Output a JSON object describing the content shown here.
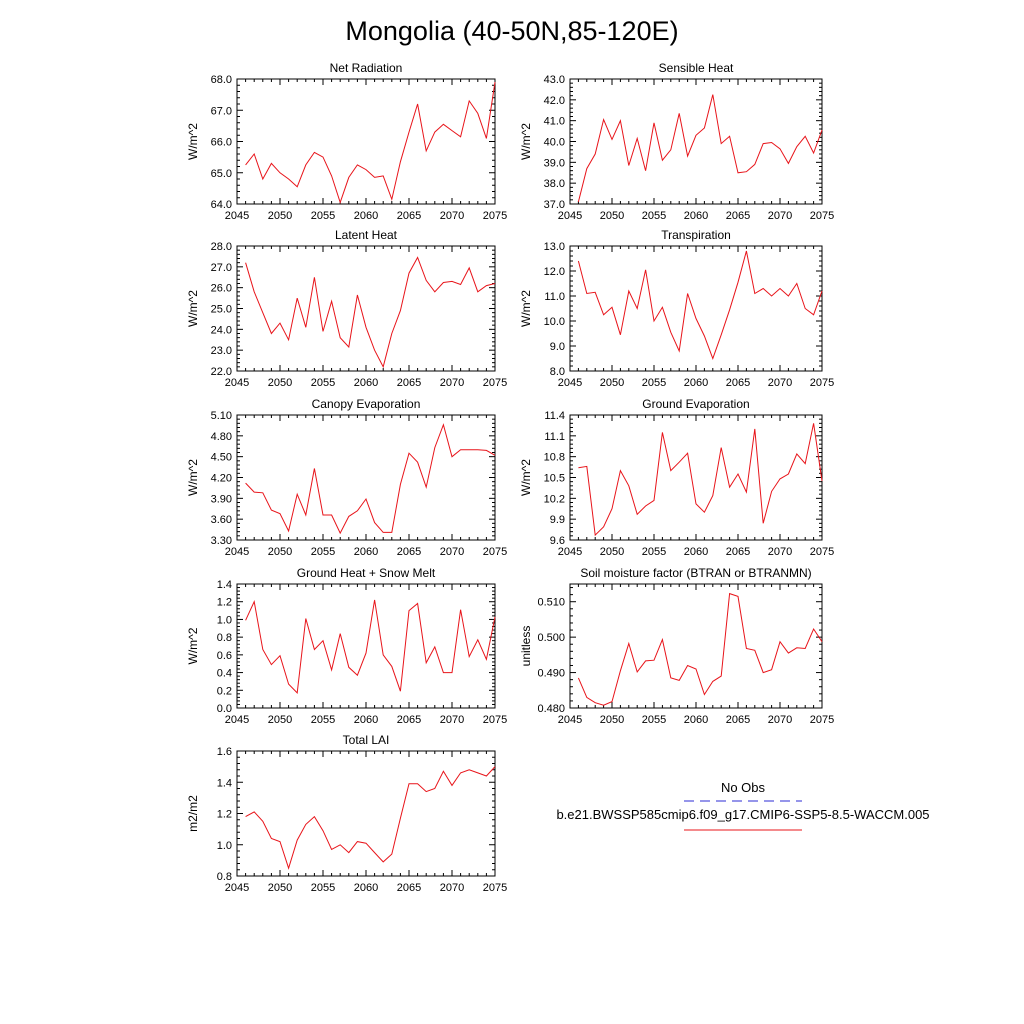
{
  "title": "Mongolia (40-50N,85-120E)",
  "legend": {
    "obs_label": "No Obs",
    "obs_color": "#2b2bd6",
    "model_label": "b.e21.BWSSP585cmip6.f09_g17.CMIP6-SSP5-8.5-WACCM.005",
    "model_color": "#e8141a"
  },
  "line_color": "#e8141a",
  "chart_data": [
    {
      "id": "net-radiation",
      "type": "line",
      "title": "Net Radiation",
      "ylabel": "W/m^2",
      "xlabel": "",
      "xlim": [
        2045,
        2075
      ],
      "ylim": [
        64.0,
        68.0
      ],
      "xticks": [
        "2045",
        "2050",
        "2055",
        "2060",
        "2065",
        "2070",
        "2075"
      ],
      "yticks": [
        "64.0",
        "65.0",
        "66.0",
        "67.0",
        "68.0"
      ],
      "x": [
        2046,
        2047,
        2048,
        2049,
        2050,
        2051,
        2052,
        2053,
        2054,
        2055,
        2056,
        2057,
        2058,
        2059,
        2060,
        2061,
        2062,
        2063,
        2064,
        2065,
        2066,
        2067,
        2068,
        2069,
        2070,
        2071,
        2072,
        2073,
        2074,
        2075
      ],
      "values": [
        65.25,
        65.6,
        64.8,
        65.3,
        65.0,
        64.8,
        64.55,
        65.25,
        65.65,
        65.5,
        64.9,
        64.05,
        64.85,
        65.25,
        65.1,
        64.85,
        64.9,
        64.15,
        65.35,
        66.3,
        67.2,
        65.7,
        66.3,
        66.55,
        66.35,
        66.15,
        67.3,
        66.9,
        66.1,
        67.9
      ]
    },
    {
      "id": "sensible-heat",
      "type": "line",
      "title": "Sensible Heat",
      "ylabel": "W/m^2",
      "xlabel": "",
      "xlim": [
        2045,
        2075
      ],
      "ylim": [
        37.0,
        43.0
      ],
      "xticks": [
        "2045",
        "2050",
        "2055",
        "2060",
        "2065",
        "2070",
        "2075"
      ],
      "yticks": [
        "37.0",
        "38.0",
        "39.0",
        "40.0",
        "41.0",
        "42.0",
        "43.0"
      ],
      "x": [
        2046,
        2047,
        2048,
        2049,
        2050,
        2051,
        2052,
        2053,
        2054,
        2055,
        2056,
        2057,
        2058,
        2059,
        2060,
        2061,
        2062,
        2063,
        2064,
        2065,
        2066,
        2067,
        2068,
        2069,
        2070,
        2071,
        2072,
        2073,
        2074,
        2075
      ],
      "values": [
        37.1,
        38.7,
        39.4,
        41.05,
        40.1,
        41.0,
        38.85,
        40.15,
        38.6,
        40.9,
        39.1,
        39.6,
        41.35,
        39.3,
        40.3,
        40.65,
        42.25,
        39.9,
        40.25,
        38.5,
        38.55,
        38.9,
        39.9,
        39.95,
        39.65,
        38.95,
        39.75,
        40.25,
        39.45,
        40.55
      ]
    },
    {
      "id": "latent-heat",
      "type": "line",
      "title": "Latent Heat",
      "ylabel": "W/m^2",
      "xlabel": "",
      "xlim": [
        2045,
        2075
      ],
      "ylim": [
        22.0,
        28.0
      ],
      "xticks": [
        "2045",
        "2050",
        "2055",
        "2060",
        "2065",
        "2070",
        "2075"
      ],
      "yticks": [
        "22.0",
        "23.0",
        "24.0",
        "25.0",
        "26.0",
        "27.0",
        "28.0"
      ],
      "x": [
        2046,
        2047,
        2048,
        2049,
        2050,
        2051,
        2052,
        2053,
        2054,
        2055,
        2056,
        2057,
        2058,
        2059,
        2060,
        2061,
        2062,
        2063,
        2064,
        2065,
        2066,
        2067,
        2068,
        2069,
        2070,
        2071,
        2072,
        2073,
        2074,
        2075
      ],
      "values": [
        27.2,
        25.8,
        24.8,
        23.8,
        24.3,
        23.5,
        25.5,
        24.1,
        26.5,
        23.9,
        25.35,
        23.6,
        23.15,
        25.65,
        24.1,
        23.0,
        22.2,
        23.8,
        24.9,
        26.7,
        27.45,
        26.35,
        25.8,
        26.25,
        26.3,
        26.15,
        26.95,
        25.8,
        26.1,
        26.2
      ]
    },
    {
      "id": "transpiration",
      "type": "line",
      "title": "Transpiration",
      "ylabel": "W/m^2",
      "xlabel": "",
      "xlim": [
        2045,
        2075
      ],
      "ylim": [
        8.0,
        13.0
      ],
      "xticks": [
        "2045",
        "2050",
        "2055",
        "2060",
        "2065",
        "2070",
        "2075"
      ],
      "yticks": [
        "8.0",
        "9.0",
        "10.0",
        "11.0",
        "12.0",
        "13.0"
      ],
      "x": [
        2046,
        2047,
        2048,
        2049,
        2050,
        2051,
        2052,
        2053,
        2054,
        2055,
        2056,
        2057,
        2058,
        2059,
        2060,
        2061,
        2062,
        2063,
        2064,
        2065,
        2066,
        2067,
        2068,
        2069,
        2070,
        2071,
        2072,
        2073,
        2074,
        2075
      ],
      "values": [
        12.4,
        11.1,
        11.15,
        10.25,
        10.55,
        9.45,
        11.2,
        10.5,
        12.05,
        10.0,
        10.55,
        9.55,
        8.8,
        11.1,
        10.1,
        9.4,
        8.5,
        9.45,
        10.45,
        11.55,
        12.8,
        11.1,
        11.3,
        11.0,
        11.3,
        11.0,
        11.5,
        10.5,
        10.25,
        11.2
      ]
    },
    {
      "id": "canopy-evaporation",
      "type": "line",
      "title": "Canopy Evaporation",
      "ylabel": "W/m^2",
      "xlabel": "",
      "xlim": [
        2045,
        2075
      ],
      "ylim": [
        3.3,
        5.1
      ],
      "xticks": [
        "2045",
        "2050",
        "2055",
        "2060",
        "2065",
        "2070",
        "2075"
      ],
      "yticks": [
        "3.30",
        "3.60",
        "3.90",
        "4.20",
        "4.50",
        "4.80",
        "5.10"
      ],
      "x": [
        2046,
        2047,
        2048,
        2049,
        2050,
        2051,
        2052,
        2053,
        2054,
        2055,
        2056,
        2057,
        2058,
        2059,
        2060,
        2061,
        2062,
        2063,
        2064,
        2065,
        2066,
        2067,
        2068,
        2069,
        2070,
        2071,
        2072,
        2073,
        2074,
        2075
      ],
      "values": [
        4.12,
        3.99,
        3.98,
        3.73,
        3.68,
        3.43,
        3.96,
        3.66,
        4.33,
        3.66,
        3.66,
        3.4,
        3.64,
        3.72,
        3.89,
        3.55,
        3.41,
        3.41,
        4.1,
        4.55,
        4.42,
        4.06,
        4.63,
        4.96,
        4.5,
        4.6,
        4.6,
        4.6,
        4.59,
        4.52
      ]
    },
    {
      "id": "ground-evaporation",
      "type": "line",
      "title": "Ground Evaporation",
      "ylabel": "W/m^2",
      "xlabel": "",
      "xlim": [
        2045,
        2075
      ],
      "ylim": [
        9.6,
        11.4
      ],
      "xticks": [
        "2045",
        "2050",
        "2055",
        "2060",
        "2065",
        "2070",
        "2075"
      ],
      "yticks": [
        "9.6",
        "9.9",
        "10.2",
        "10.5",
        "10.8",
        "11.1",
        "11.4"
      ],
      "x": [
        2046,
        2047,
        2048,
        2049,
        2050,
        2051,
        2052,
        2053,
        2054,
        2055,
        2056,
        2057,
        2058,
        2059,
        2060,
        2061,
        2062,
        2063,
        2064,
        2065,
        2066,
        2067,
        2068,
        2069,
        2070,
        2071,
        2072,
        2073,
        2074,
        2075
      ],
      "values": [
        10.64,
        10.66,
        9.67,
        9.79,
        10.05,
        10.6,
        10.38,
        9.97,
        10.09,
        10.17,
        11.15,
        10.6,
        10.72,
        10.85,
        10.12,
        10.0,
        10.24,
        10.93,
        10.36,
        10.55,
        10.29,
        11.2,
        9.84,
        10.3,
        10.48,
        10.55,
        10.84,
        10.7,
        11.28,
        10.45
      ]
    },
    {
      "id": "ground-heat-snow-melt",
      "type": "line",
      "title": "Ground Heat + Snow Melt",
      "ylabel": "W/m^2",
      "xlabel": "",
      "xlim": [
        2045,
        2075
      ],
      "ylim": [
        0.0,
        1.4
      ],
      "xticks": [
        "2045",
        "2050",
        "2055",
        "2060",
        "2065",
        "2070",
        "2075"
      ],
      "yticks": [
        "0.0",
        "0.2",
        "0.4",
        "0.6",
        "0.8",
        "1.0",
        "1.2",
        "1.4"
      ],
      "x": [
        2046,
        2047,
        2048,
        2049,
        2050,
        2051,
        2052,
        2053,
        2054,
        2055,
        2056,
        2057,
        2058,
        2059,
        2060,
        2061,
        2062,
        2063,
        2064,
        2065,
        2066,
        2067,
        2068,
        2069,
        2070,
        2071,
        2072,
        2073,
        2074,
        2075
      ],
      "values": [
        0.99,
        1.2,
        0.66,
        0.49,
        0.59,
        0.27,
        0.17,
        1.01,
        0.66,
        0.76,
        0.43,
        0.84,
        0.46,
        0.37,
        0.62,
        1.22,
        0.6,
        0.47,
        0.19,
        1.1,
        1.18,
        0.51,
        0.69,
        0.4,
        0.4,
        1.11,
        0.58,
        0.77,
        0.55,
        1.03
      ]
    },
    {
      "id": "soil-moisture-factor",
      "type": "line",
      "title": "Soil moisture factor (BTRAN or BTRANMN)",
      "ylabel": "unitless",
      "xlabel": "",
      "xlim": [
        2045,
        2075
      ],
      "ylim": [
        0.48,
        0.515
      ],
      "xticks": [
        "2045",
        "2050",
        "2055",
        "2060",
        "2065",
        "2070",
        "2075"
      ],
      "yticks": [
        "0.480",
        "0.490",
        "0.500",
        "0.510"
      ],
      "x": [
        2046,
        2047,
        2048,
        2049,
        2050,
        2051,
        2052,
        2053,
        2054,
        2055,
        2056,
        2057,
        2058,
        2059,
        2060,
        2061,
        2062,
        2063,
        2064,
        2065,
        2066,
        2067,
        2068,
        2069,
        2070,
        2071,
        2072,
        2073,
        2074,
        2075
      ],
      "values": [
        0.4885,
        0.483,
        0.4815,
        0.4808,
        0.4818,
        0.4905,
        0.4982,
        0.4902,
        0.4933,
        0.4935,
        0.4993,
        0.4885,
        0.4878,
        0.492,
        0.491,
        0.4838,
        0.4875,
        0.489,
        0.5123,
        0.5115,
        0.4968,
        0.4963,
        0.49,
        0.4908,
        0.4987,
        0.4955,
        0.497,
        0.4968,
        0.5023,
        0.4987
      ]
    },
    {
      "id": "total-lai",
      "type": "line",
      "title": "Total LAI",
      "ylabel": "m2/m2",
      "xlabel": "",
      "xlim": [
        2045,
        2075
      ],
      "ylim": [
        0.8,
        1.6
      ],
      "xticks": [
        "2045",
        "2050",
        "2055",
        "2060",
        "2065",
        "2070",
        "2075"
      ],
      "yticks": [
        "0.8",
        "1.0",
        "1.2",
        "1.4",
        "1.6"
      ],
      "x": [
        2046,
        2047,
        2048,
        2049,
        2050,
        2051,
        2052,
        2053,
        2054,
        2055,
        2056,
        2057,
        2058,
        2059,
        2060,
        2061,
        2062,
        2063,
        2064,
        2065,
        2066,
        2067,
        2068,
        2069,
        2070,
        2071,
        2072,
        2073,
        2074,
        2075
      ],
      "values": [
        1.18,
        1.21,
        1.15,
        1.04,
        1.02,
        0.85,
        1.03,
        1.13,
        1.18,
        1.09,
        0.97,
        1.0,
        0.95,
        1.02,
        1.01,
        0.95,
        0.89,
        0.94,
        1.17,
        1.39,
        1.39,
        1.34,
        1.36,
        1.47,
        1.38,
        1.46,
        1.48,
        1.46,
        1.44,
        1.5
      ]
    }
  ]
}
